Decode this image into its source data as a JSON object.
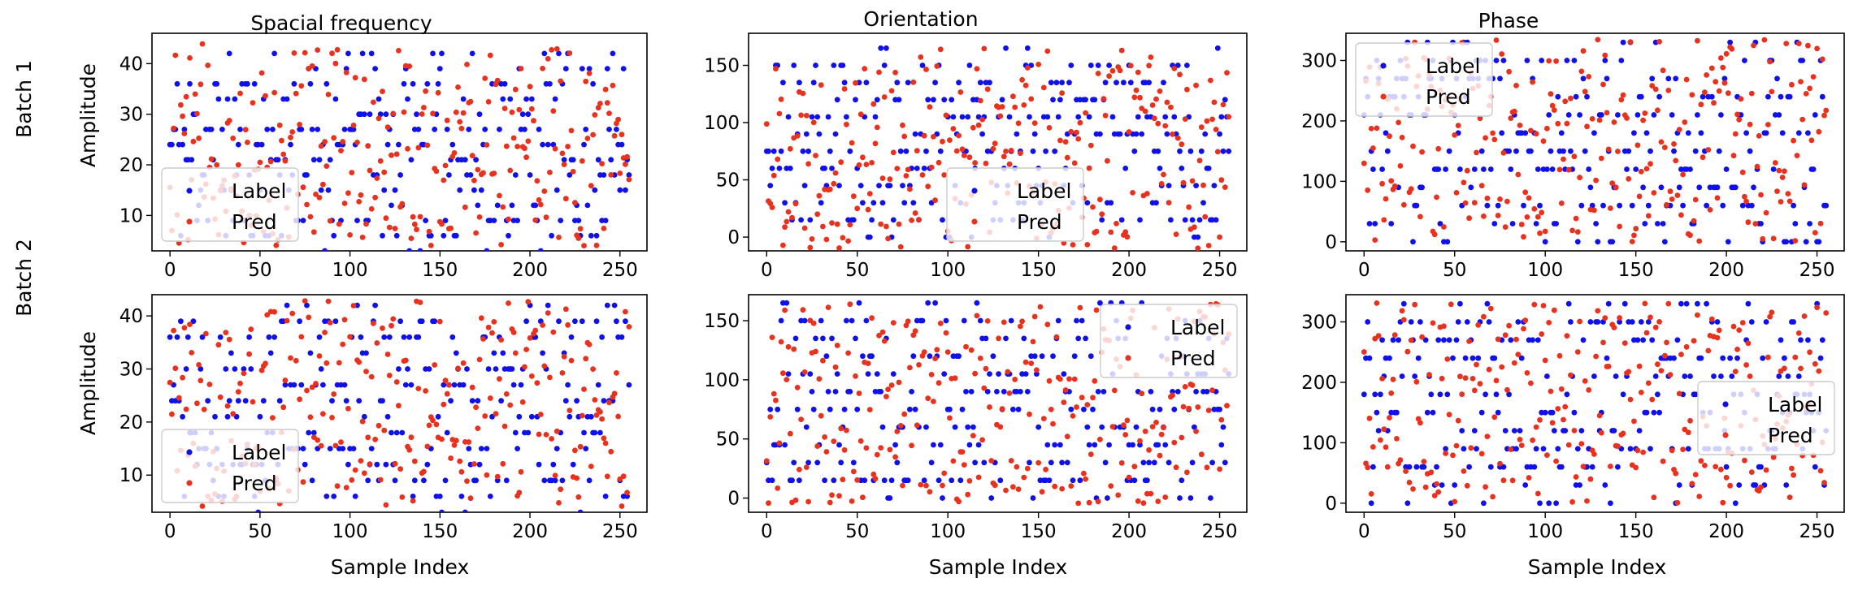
{
  "figure": {
    "column_titles": [
      "Spacial frequency",
      "Orientation",
      "Phase"
    ],
    "row_labels": [
      "Batch 1",
      "Batch 2"
    ],
    "xlabel": "Sample Index",
    "ylabel": "Amplitude"
  },
  "colors": {
    "label": "#1010e8",
    "pred": "#e8321e"
  },
  "chart_data": [
    {
      "type": "scatter",
      "title": "Spacial frequency",
      "row_label": "Batch 1",
      "xlabel": "",
      "ylabel": "Amplitude",
      "xlim": [
        -10,
        265
      ],
      "ylim": [
        3,
        46
      ],
      "xticks": [
        0,
        50,
        100,
        150,
        200,
        250
      ],
      "yticks": [
        10,
        20,
        30,
        40
      ],
      "legend": {
        "position": "lower-left",
        "entries": [
          "Label",
          "Pred"
        ]
      },
      "series": [
        {
          "name": "Label",
          "n": 256,
          "min": 4,
          "max": 42,
          "seed": 11,
          "step": 3
        },
        {
          "name": "Pred",
          "n": 256,
          "min": 4,
          "max": 44,
          "seed": 12,
          "step": 0
        }
      ]
    },
    {
      "type": "scatter",
      "title": "Orientation",
      "row_label": "Batch 1",
      "xlabel": "",
      "ylabel": "",
      "xlim": [
        -10,
        265
      ],
      "ylim": [
        -12,
        178
      ],
      "xticks": [
        0,
        50,
        100,
        150,
        200,
        250
      ],
      "yticks": [
        0,
        50,
        100,
        150
      ],
      "legend": {
        "position": "lower-center",
        "entries": [
          "Label",
          "Pred"
        ]
      },
      "series": [
        {
          "name": "Label",
          "n": 256,
          "min": 0,
          "max": 165,
          "seed": 21,
          "step": 15
        },
        {
          "name": "Pred",
          "n": 256,
          "min": -10,
          "max": 165,
          "seed": 22,
          "step": 0
        }
      ]
    },
    {
      "type": "scatter",
      "title": "Phase",
      "row_label": "Batch 1",
      "xlabel": "",
      "ylabel": "",
      "xlim": [
        -10,
        265
      ],
      "ylim": [
        -15,
        345
      ],
      "xticks": [
        0,
        50,
        100,
        150,
        200,
        250
      ],
      "yticks": [
        0,
        100,
        200,
        300
      ],
      "legend": {
        "position": "upper-left",
        "entries": [
          "Label",
          "Pred"
        ]
      },
      "series": [
        {
          "name": "Label",
          "n": 256,
          "min": 0,
          "max": 330,
          "seed": 31,
          "step": 30
        },
        {
          "name": "Pred",
          "n": 256,
          "min": 0,
          "max": 335,
          "seed": 32,
          "step": 0
        }
      ]
    },
    {
      "type": "scatter",
      "title": "",
      "row_label": "Batch 2",
      "xlabel": "Sample Index",
      "ylabel": "Amplitude",
      "xlim": [
        -10,
        265
      ],
      "ylim": [
        3,
        44
      ],
      "xticks": [
        0,
        50,
        100,
        150,
        200,
        250
      ],
      "yticks": [
        10,
        20,
        30,
        40
      ],
      "legend": {
        "position": "lower-left",
        "entries": [
          "Label",
          "Pred"
        ]
      },
      "series": [
        {
          "name": "Label",
          "n": 256,
          "min": 4,
          "max": 42,
          "seed": 41,
          "step": 3
        },
        {
          "name": "Pred",
          "n": 256,
          "min": 4,
          "max": 43,
          "seed": 42,
          "step": 0
        }
      ]
    },
    {
      "type": "scatter",
      "title": "",
      "row_label": "Batch 2",
      "xlabel": "Sample Index",
      "ylabel": "",
      "xlim": [
        -10,
        265
      ],
      "ylim": [
        -12,
        172
      ],
      "xticks": [
        0,
        50,
        100,
        150,
        200,
        250
      ],
      "yticks": [
        0,
        50,
        100,
        150
      ],
      "legend": {
        "position": "upper-right",
        "entries": [
          "Label",
          "Pred"
        ]
      },
      "series": [
        {
          "name": "Label",
          "n": 256,
          "min": 0,
          "max": 165,
          "seed": 51,
          "step": 15
        },
        {
          "name": "Pred",
          "n": 256,
          "min": -5,
          "max": 165,
          "seed": 52,
          "step": 0
        }
      ]
    },
    {
      "type": "scatter",
      "title": "",
      "row_label": "Batch 2",
      "xlabel": "Sample Index",
      "ylabel": "",
      "xlim": [
        -10,
        265
      ],
      "ylim": [
        -15,
        345
      ],
      "xticks": [
        0,
        50,
        100,
        150,
        200,
        250
      ],
      "yticks": [
        0,
        100,
        200,
        300
      ],
      "legend": {
        "position": "center-right",
        "entries": [
          "Label",
          "Pred"
        ]
      },
      "series": [
        {
          "name": "Label",
          "n": 256,
          "min": 0,
          "max": 330,
          "seed": 61,
          "step": 30
        },
        {
          "name": "Pred",
          "n": 256,
          "min": 0,
          "max": 335,
          "seed": 62,
          "step": 0
        }
      ]
    }
  ]
}
